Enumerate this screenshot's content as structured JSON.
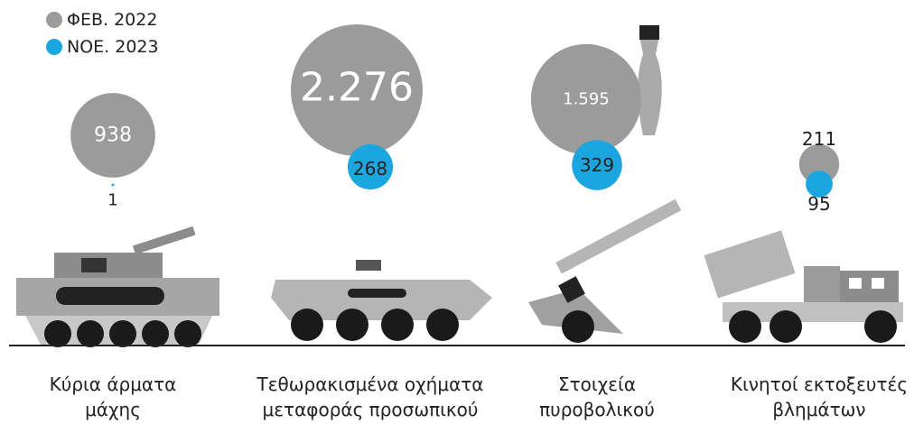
{
  "chart_data": {
    "type": "bubble",
    "categories": [
      "Κύρια άρματα μάχης",
      "Τεθωρακισμένα οχήματα μεταφοράς προσωπικού",
      "Στοιχεία πυροβολικού",
      "Κινητοί εκτοξευτές βλημάτων"
    ],
    "series": [
      {
        "name": "ΦΕΒ. 2022",
        "color": "#9b9b9b",
        "values": [
          938,
          2276,
          1595,
          211
        ],
        "value_labels": [
          "938",
          "2.276",
          "1.595",
          "211"
        ]
      },
      {
        "name": "ΝΟΕ. 2023",
        "color": "#1ba6e0",
        "values": [
          1,
          268,
          329,
          95
        ]
      }
    ]
  }
}
